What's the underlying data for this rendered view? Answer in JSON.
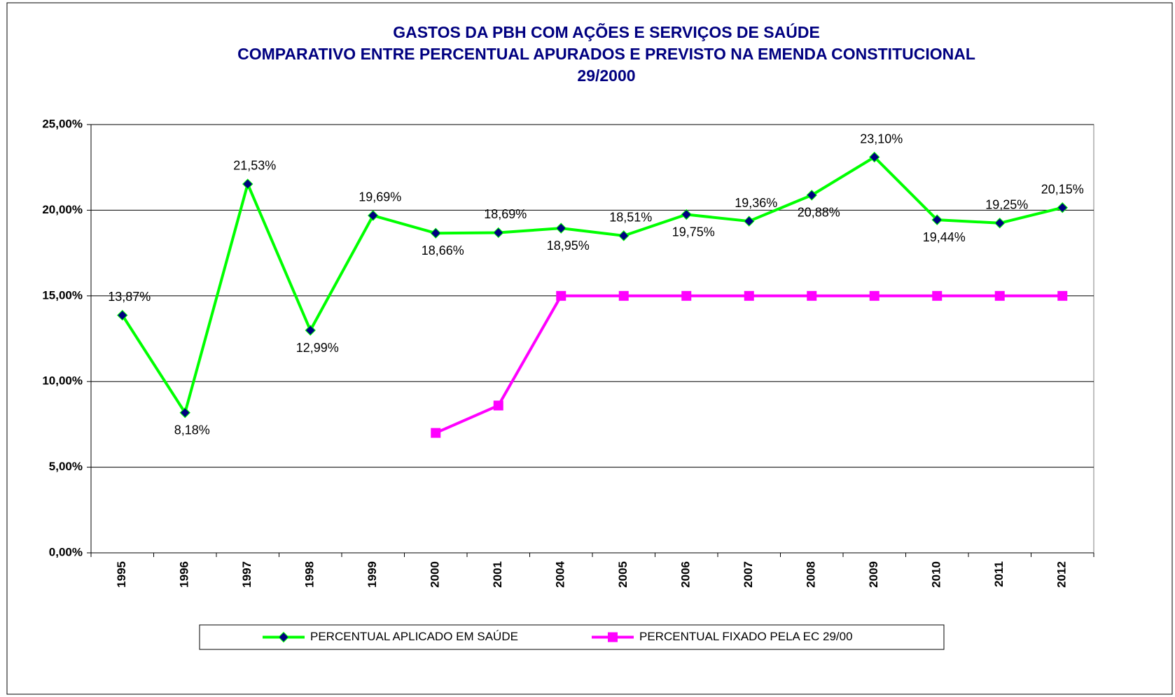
{
  "chart_data": {
    "type": "line",
    "title": [
      "GASTOS DA PBH COM AÇÕES E SERVIÇOS DE SAÚDE",
      "COMPARATIVO ENTRE PERCENTUAL APURADOS E PREVISTO NA EMENDA CONSTITUCIONAL",
      "29/2000"
    ],
    "categories": [
      "1995",
      "1996",
      "1997",
      "1998",
      "1999",
      "2000",
      "2001",
      "2004",
      "2005",
      "2006",
      "2007",
      "2008",
      "2009",
      "2010",
      "2011",
      "2012"
    ],
    "series": [
      {
        "name": "PERCENTUAL APLICADO EM SAÚDE",
        "color": "#00ff00",
        "marker_color": "#000080",
        "marker": "diamond",
        "values": [
          13.87,
          8.18,
          21.53,
          12.99,
          19.69,
          18.66,
          18.69,
          18.95,
          18.51,
          19.75,
          19.36,
          20.88,
          23.1,
          19.44,
          19.25,
          20.15
        ],
        "value_labels": [
          "13,87%",
          "8,18%",
          "21,53%",
          "12,99%",
          "19,69%",
          "18,66%",
          "18,69%",
          "18,95%",
          "18,51%",
          "19,75%",
          "19,36%",
          "20,88%",
          "23,10%",
          "19,44%",
          "19,25%",
          "20,15%"
        ]
      },
      {
        "name": "PERCENTUAL FIXADO PELA EC 29/00",
        "color": "#ff00ff",
        "marker_color": "#ff00ff",
        "marker": "square",
        "values": [
          null,
          null,
          null,
          null,
          null,
          7.0,
          8.6,
          15,
          15,
          15,
          15,
          15,
          15,
          15,
          15,
          15
        ]
      }
    ],
    "ylim": [
      0,
      25
    ],
    "yticks": [
      {
        "value": 0,
        "label": "0,00%"
      },
      {
        "value": 5,
        "label": "5,00%"
      },
      {
        "value": 10,
        "label": "10,00%"
      },
      {
        "value": 15,
        "label": "15,00%"
      },
      {
        "value": 20,
        "label": "20,00%"
      },
      {
        "value": 25,
        "label": "25,00%"
      }
    ],
    "grid": true,
    "legend": "bottom"
  }
}
